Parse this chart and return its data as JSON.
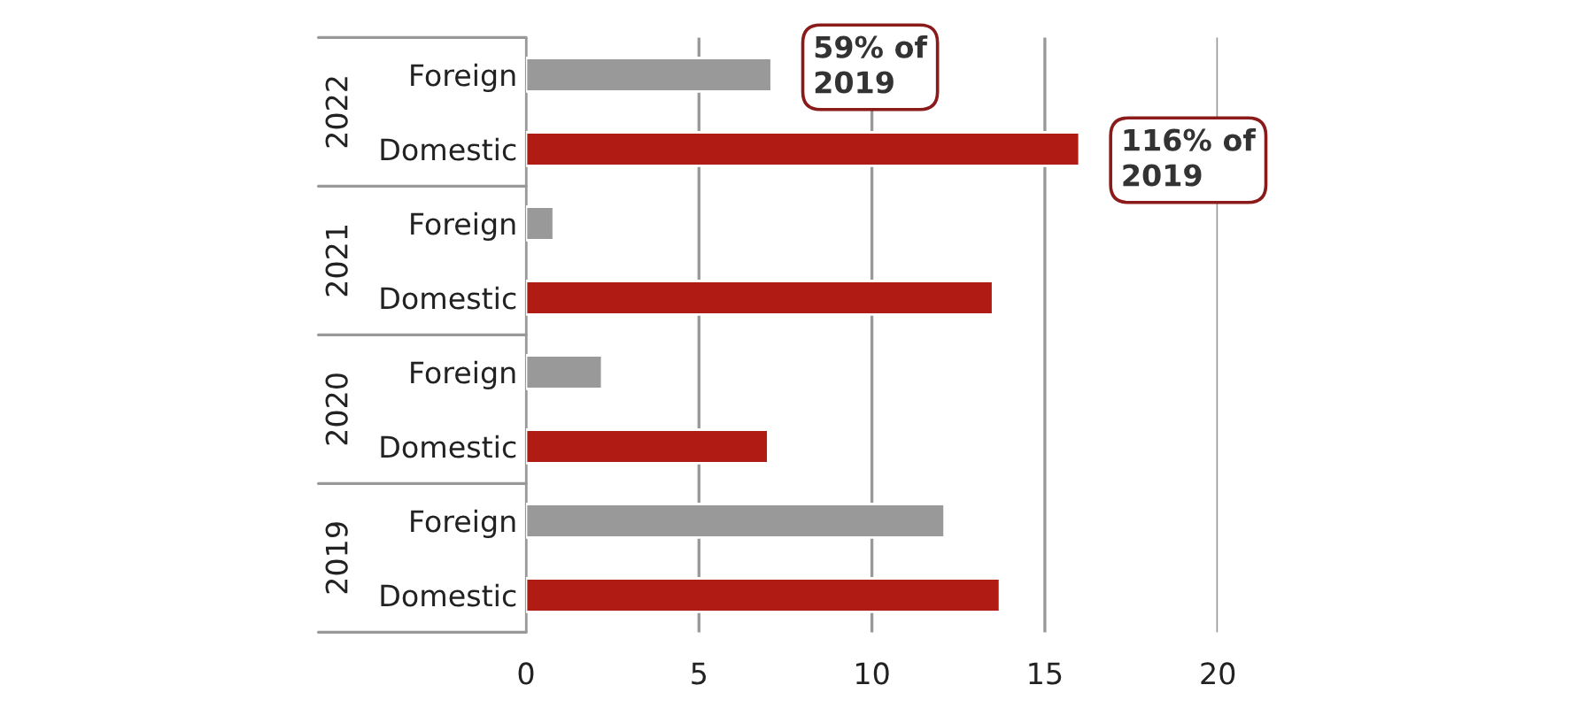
{
  "chart_data": {
    "type": "bar",
    "orientation": "horizontal",
    "categories": [
      "Foreign",
      "Domestic",
      "Foreign",
      "Domestic",
      "Foreign",
      "Domestic",
      "Foreign",
      "Domestic"
    ],
    "values": [
      7.1,
      16.0,
      0.8,
      13.5,
      2.2,
      7.0,
      12.1,
      13.7
    ],
    "colors": [
      "#999999",
      "#b01c14",
      "#999999",
      "#b01c14",
      "#999999",
      "#b01c14",
      "#999999",
      "#b01c14"
    ],
    "xlim": [
      0,
      20
    ],
    "xticks": [
      0,
      5,
      10,
      15,
      20
    ],
    "grid": "x",
    "annotations": [
      "2022",
      "2021",
      "2020",
      "2019",
      "59% of\n2019",
      "116% of\n2019"
    ]
  }
}
